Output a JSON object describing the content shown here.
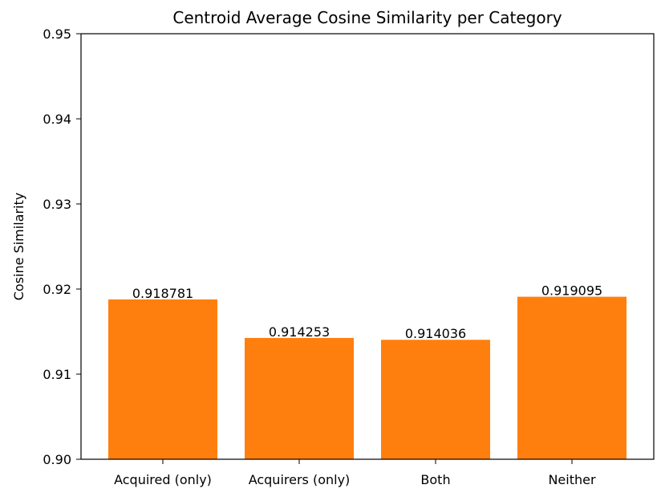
{
  "chart_data": {
    "type": "bar",
    "title": "Centroid Average Cosine Similarity per Category",
    "xlabel": "",
    "ylabel": "Cosine Similarity",
    "categories": [
      "Acquired (only)",
      "Acquirers (only)",
      "Both",
      "Neither"
    ],
    "values": [
      0.918781,
      0.914253,
      0.914036,
      0.919095
    ],
    "value_labels": [
      "0.918781",
      "0.914253",
      "0.914036",
      "0.919095"
    ],
    "ylim": [
      0.9,
      0.95
    ],
    "yticks": [
      0.9,
      0.91,
      0.92,
      0.93,
      0.94,
      0.95
    ],
    "ytick_labels": [
      "0.90",
      "0.91",
      "0.92",
      "0.93",
      "0.94",
      "0.95"
    ],
    "grid": false,
    "colors": {
      "bar": "#ff7f0e",
      "axis": "#000000",
      "background": "#ffffff"
    }
  }
}
